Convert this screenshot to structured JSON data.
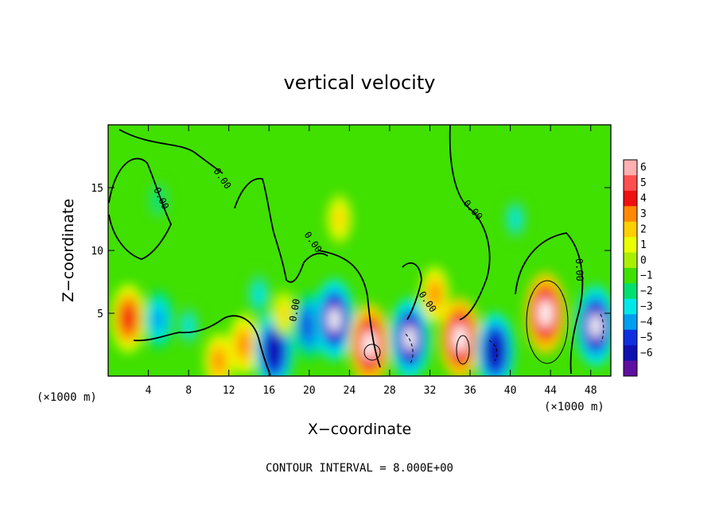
{
  "chart_data": {
    "type": "heatmap",
    "title": "vertical velocity",
    "xlabel": "X−coordinate",
    "ylabel": "Z−coordinate",
    "x_unit": "(×1000 m)",
    "x_unit_right": "(×1000 m)",
    "xlim": [
      0,
      50
    ],
    "ylim": [
      0,
      20
    ],
    "xticks": [
      4,
      8,
      12,
      16,
      20,
      24,
      28,
      32,
      36,
      40,
      44,
      48
    ],
    "yticks": [
      5,
      10,
      15
    ],
    "contour_interval_text": "CONTOUR INTERVAL = 8.000E+00",
    "contour_labels": [
      "0.00",
      "0.00",
      "0.00",
      "0.00",
      "0.00",
      "0.00",
      "0.00"
    ],
    "colorbar": {
      "ticks": [
        "6",
        "5",
        "4",
        "3",
        "2",
        "1",
        "0",
        "−1",
        "−2",
        "−3",
        "−4",
        "−5",
        "−6"
      ],
      "colors": [
        "#ffb0b0",
        "#ff5050",
        "#f01010",
        "#ff8a00",
        "#ffd000",
        "#eaff00",
        "#a8f000",
        "#40e000",
        "#00e070",
        "#00e8e8",
        "#00a0f0",
        "#1030e0",
        "#1010b0",
        "#6010a0"
      ]
    },
    "features": [
      {
        "x": 2,
        "z": 4.6,
        "w": 4.5
      },
      {
        "x": 5,
        "z": 4.5,
        "w": -3.5
      },
      {
        "x": 5,
        "z": 14,
        "w": -1.5
      },
      {
        "x": 8,
        "z": 4,
        "w": -2
      },
      {
        "x": 11,
        "z": 1.2,
        "w": 3
      },
      {
        "x": 13.5,
        "z": 2.5,
        "w": 3.5
      },
      {
        "x": 15,
        "z": 6.5,
        "w": -2.5
      },
      {
        "x": 16.5,
        "z": 2,
        "w": -5.5
      },
      {
        "x": 17.5,
        "z": 5,
        "w": 2
      },
      {
        "x": 20,
        "z": 4,
        "w": -4.5
      },
      {
        "x": 22.5,
        "z": 4.5,
        "w": -6
      },
      {
        "x": 23,
        "z": 12.5,
        "w": 2.5
      },
      {
        "x": 26,
        "z": 2.5,
        "w": 6
      },
      {
        "x": 30,
        "z": 3,
        "w": -6
      },
      {
        "x": 32.5,
        "z": 6.5,
        "w": 3
      },
      {
        "x": 35,
        "z": 3,
        "w": 6
      },
      {
        "x": 38.5,
        "z": 2,
        "w": -5.5
      },
      {
        "x": 40.5,
        "z": 12.5,
        "w": -2
      },
      {
        "x": 43.5,
        "z": 5,
        "w": 6
      },
      {
        "x": 48.5,
        "z": 4,
        "w": -6
      }
    ]
  }
}
